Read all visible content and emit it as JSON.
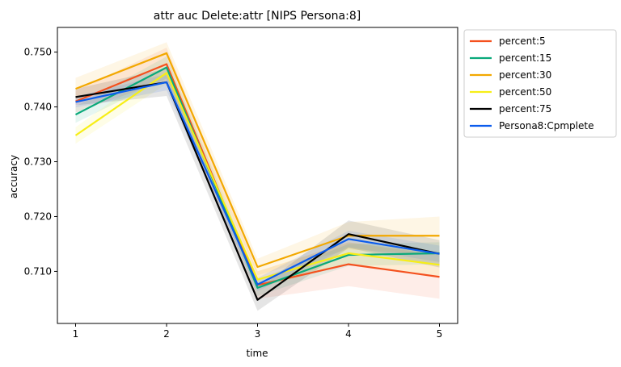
{
  "chart_data": {
    "type": "line",
    "title": "attr auc Delete:attr [NIPS Persona:8]",
    "xlabel": "time",
    "ylabel": "accuracy",
    "x": [
      1,
      2,
      3,
      4,
      5
    ],
    "xlim": [
      0.8,
      5.2
    ],
    "ylim": [
      0.7005,
      0.7545
    ],
    "xticks": [
      1,
      2,
      3,
      4,
      5
    ],
    "yticks": [
      0.71,
      0.72,
      0.73,
      0.74,
      0.75
    ],
    "ytick_labels": [
      "0.710",
      "0.720",
      "0.730",
      "0.740",
      "0.750"
    ],
    "grid": false,
    "legend_position": "outside-upper-right",
    "series": [
      {
        "name": "percent:5",
        "color": "#f4511e",
        "values": [
          0.741,
          0.7478,
          0.7075,
          0.7113,
          0.709
        ],
        "band": [
          0.002,
          0.003,
          0.0025,
          0.004,
          0.004
        ]
      },
      {
        "name": "percent:15",
        "color": "#09a97a",
        "values": [
          0.7386,
          0.7472,
          0.707,
          0.713,
          0.7133
        ],
        "band": [
          0.0015,
          0.002,
          0.0015,
          0.002,
          0.002
        ]
      },
      {
        "name": "percent:30",
        "color": "#f2a800",
        "values": [
          0.7433,
          0.7498,
          0.7108,
          0.7165,
          0.7165
        ],
        "band": [
          0.002,
          0.002,
          0.0015,
          0.0025,
          0.0035
        ]
      },
      {
        "name": "percent:50",
        "color": "#f7ee16",
        "values": [
          0.7348,
          0.7462,
          0.7085,
          0.7133,
          0.7112
        ],
        "band": [
          0.0015,
          0.002,
          0.0015,
          0.002,
          0.002
        ]
      },
      {
        "name": "percent:75",
        "color": "#000000",
        "values": [
          0.7418,
          0.7445,
          0.7048,
          0.7168,
          0.7132
        ],
        "band": [
          0.0015,
          0.0025,
          0.002,
          0.0025,
          0.0025
        ]
      },
      {
        "name": "Persona8:Cpmplete",
        "color": "#0b5ced",
        "values": [
          0.7409,
          0.7445,
          0.7076,
          0.7159,
          0.7132
        ],
        "band": [
          0.001,
          0.0015,
          0.0012,
          0.0015,
          0.0015
        ]
      }
    ]
  }
}
